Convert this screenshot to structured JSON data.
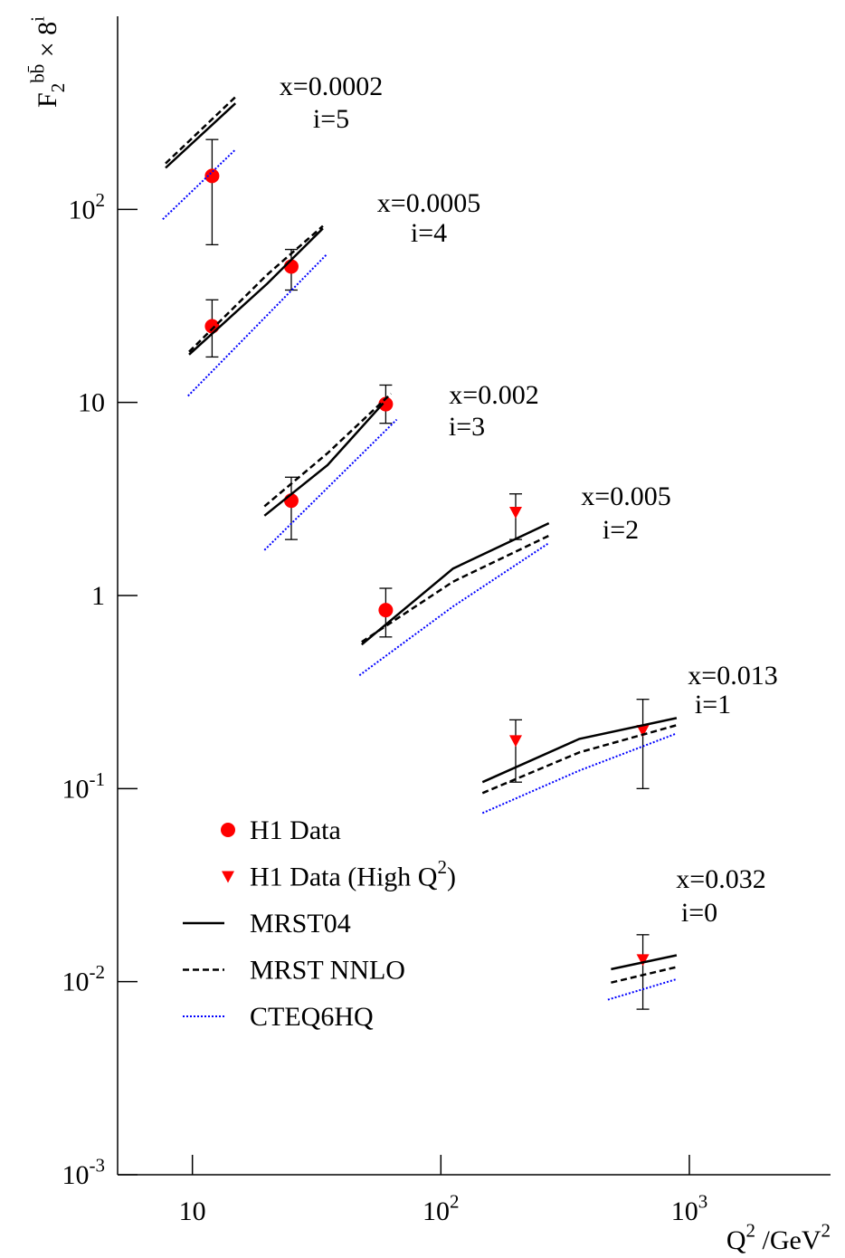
{
  "chart_data": {
    "type": "scatter",
    "ylabel": "F_{2}^{bb̄} × 8^{i}",
    "xlabel": "Q^{2} /GeV^{2}",
    "log_x": true,
    "log_y": true,
    "xlim": [
      5,
      3700
    ],
    "ylim": [
      0.001,
      1000
    ],
    "xticks": [
      10,
      {
        "value": 100,
        "label": "10^{2}"
      },
      {
        "value": 1000,
        "label": "10^{3}"
      }
    ],
    "yticks": [
      {
        "value": 0.001,
        "label": "10^{-3}"
      },
      {
        "value": 0.01,
        "label": "10^{-2}"
      },
      {
        "value": 0.1,
        "label": "10^{-1}"
      },
      1,
      10,
      {
        "value": 100,
        "label": "10^{2}"
      }
    ],
    "series": [
      {
        "name": "H1 Data",
        "kind": "points",
        "marker": "circle",
        "color": "#ff0000",
        "x": [
          12,
          12,
          25,
          25,
          60,
          60
        ],
        "values": [
          149,
          24.8,
          50.6,
          3.1,
          9.8,
          0.84
        ],
        "lower": [
          65.6,
          17.2,
          38.2,
          1.95,
          7.8,
          0.61
        ],
        "upper": [
          230,
          34,
          62,
          4.1,
          12.3,
          1.09
        ]
      },
      {
        "name": "H1 Data (High Q^{2})",
        "kind": "points",
        "marker": "triangle",
        "color": "#ff0000",
        "x": [
          200,
          200,
          650,
          650
        ],
        "values": [
          2.7,
          0.177,
          0.2,
          0.013
        ],
        "lower": [
          1.95,
          0.108,
          0.1,
          0.0072
        ],
        "upper": [
          3.36,
          0.227,
          0.29,
          0.0175
        ]
      },
      {
        "name": "MRST04",
        "kind": "line",
        "dash": "solid",
        "color": "#000000",
        "x": [
          7.8,
          14.9,
          null,
          9.7,
          20,
          33.5,
          null,
          19.5,
          35,
          58.6,
          null,
          48,
          112,
          272,
          null,
          147,
          361,
          889,
          null,
          484,
          889
        ],
        "values": [
          164,
          354,
          null,
          17.7,
          41.2,
          79.7,
          null,
          2.59,
          4.74,
          9.9,
          null,
          0.557,
          1.38,
          2.37,
          null,
          0.108,
          0.181,
          0.232,
          null,
          0.0116,
          0.0137
        ]
      },
      {
        "name": "MRST NNLO",
        "kind": "line",
        "dash": "dashed",
        "color": "#000000",
        "x": [
          7.8,
          14.9,
          null,
          9.7,
          20,
          33.5,
          null,
          19.5,
          35,
          63,
          null,
          48,
          112,
          272,
          null,
          147,
          361,
          889,
          null,
          484,
          889
        ],
        "values": [
          173,
          382,
          null,
          18.3,
          45.9,
          82,
          null,
          2.9,
          5.46,
          11.1,
          null,
          0.575,
          1.18,
          2.04,
          null,
          0.0948,
          0.154,
          0.213,
          null,
          0.00989,
          0.0119
        ]
      },
      {
        "name": "CTEQ6HQ",
        "kind": "line",
        "dash": "dotted",
        "color": "#0000ff",
        "x": [
          7.6,
          14.9,
          null,
          9.6,
          34.9,
          null,
          19.5,
          66.4,
          null,
          47,
          112,
          272,
          null,
          147,
          361,
          889,
          null,
          470,
          889
        ],
        "values": [
          88.8,
          204,
          null,
          10.8,
          58.9,
          null,
          1.72,
          8.15,
          null,
          0.386,
          0.878,
          1.87,
          null,
          0.0747,
          0.124,
          0.193,
          null,
          0.00806,
          0.0103
        ]
      }
    ],
    "annotations": [
      "x=0.0002",
      "i=5",
      "x=0.0005",
      "i=4",
      "x=0.002",
      "i=3",
      "x=0.005",
      "i=2",
      "x=0.013",
      "i=1",
      "x=0.032",
      "i=0"
    ]
  }
}
